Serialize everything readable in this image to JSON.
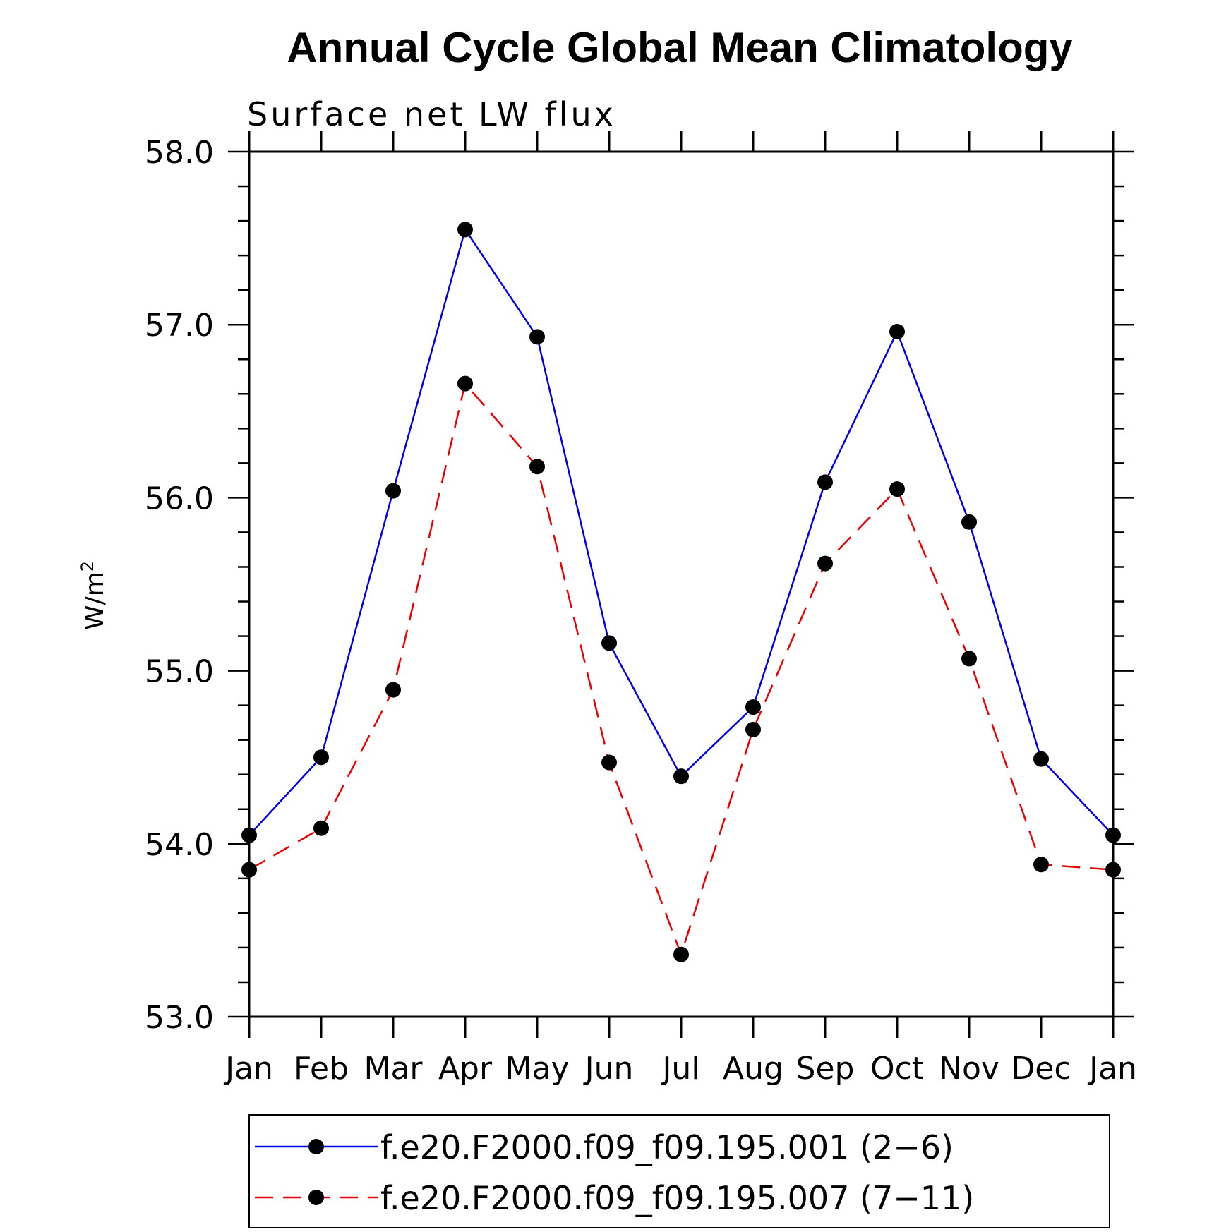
{
  "chart_data": {
    "type": "line",
    "title": "Annual Cycle Global Mean Climatology",
    "subtitle": "Surface net LW flux",
    "ylabel_base": "W/m",
    "ylabel_sup": "2",
    "categories": [
      "Jan",
      "Feb",
      "Mar",
      "Apr",
      "May",
      "Jun",
      "Jul",
      "Aug",
      "Sep",
      "Oct",
      "Nov",
      "Dec",
      "Jan"
    ],
    "ylim": [
      53.0,
      58.0
    ],
    "yticks": [
      "53.0",
      "54.0",
      "55.0",
      "56.0",
      "57.0",
      "58.0"
    ],
    "series": [
      {
        "name": "f.e20.F2000.f09_f09.195.001 (2−6)",
        "color": "#0000ee",
        "dash": "solid",
        "values": [
          54.05,
          54.5,
          56.04,
          57.55,
          56.93,
          55.16,
          54.39,
          54.79,
          56.09,
          56.96,
          55.86,
          54.49,
          54.05
        ]
      },
      {
        "name": "f.e20.F2000.f09_f09.195.007 (7−11)",
        "color": "#ee0000",
        "dash": "dashed",
        "values": [
          53.85,
          54.09,
          54.89,
          56.66,
          56.18,
          54.47,
          53.36,
          54.66,
          55.62,
          56.05,
          55.07,
          53.88,
          53.85
        ]
      }
    ],
    "legend_position": "bottom",
    "grid": false
  }
}
